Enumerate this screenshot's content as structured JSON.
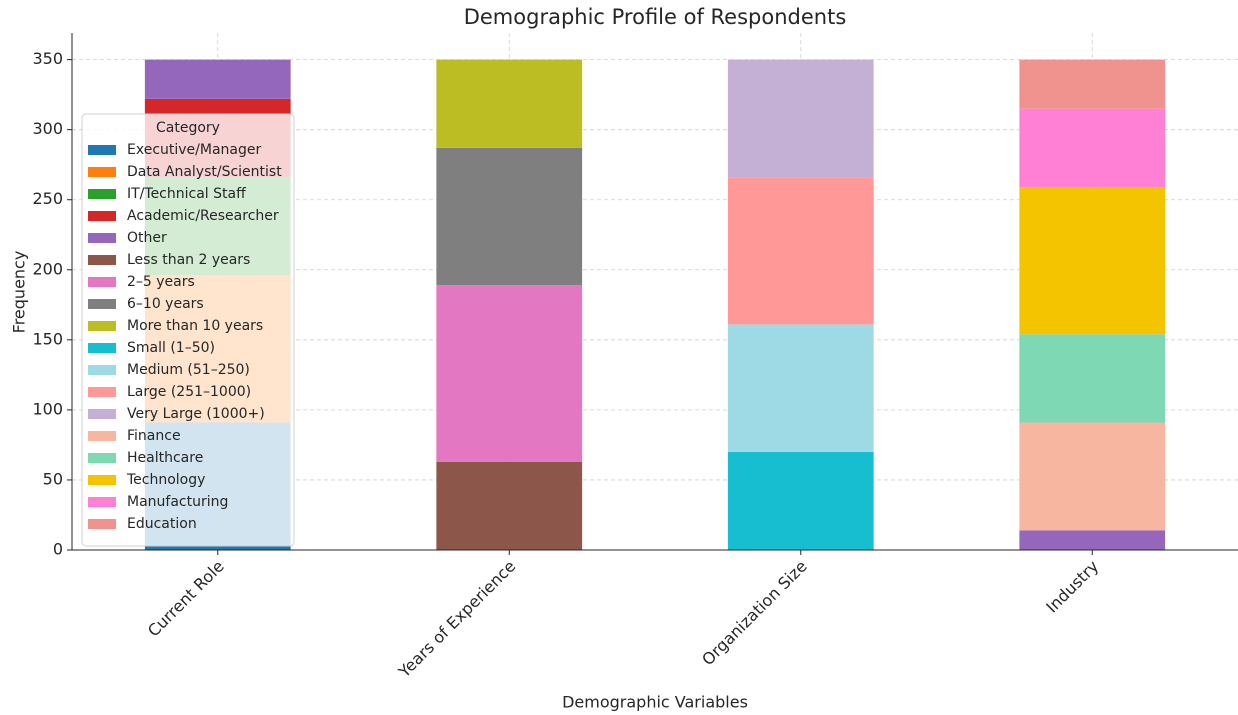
{
  "chart_data": {
    "type": "stacked_bar",
    "title": "Demographic Profile of Respondents",
    "x_label": "Demographic Variables",
    "y_label": "Frequency",
    "categories": [
      "Current Role",
      "Years of Experience",
      "Organization Size",
      "Industry"
    ],
    "ylim": [
      0,
      369
    ],
    "yticks": [
      0,
      50,
      100,
      150,
      200,
      250,
      300,
      350
    ],
    "grid": true,
    "legend_title": "Category",
    "legend_position": "left",
    "series": [
      {
        "name": "Executive/Manager",
        "color": "#1f77b4",
        "values": [
          91,
          null,
          null,
          null
        ]
      },
      {
        "name": "Data Analyst/Scientist",
        "color": "#ff7f0e",
        "values": [
          105,
          null,
          null,
          null
        ]
      },
      {
        "name": "IT/Technical Staff",
        "color": "#2ca02c",
        "values": [
          70,
          null,
          null,
          null
        ]
      },
      {
        "name": "Academic/Researcher",
        "color": "#d62728",
        "values": [
          56,
          null,
          null,
          null
        ]
      },
      {
        "name": "Other",
        "color": "#9467bd",
        "values": [
          28,
          null,
          null,
          14
        ]
      },
      {
        "name": "Less than 2 years",
        "color": "#8c564b",
        "values": [
          null,
          63,
          null,
          null
        ]
      },
      {
        "name": "2–5 years",
        "color": "#e377c2",
        "values": [
          null,
          126,
          null,
          null
        ]
      },
      {
        "name": "6–10 years",
        "color": "#7f7f7f",
        "values": [
          null,
          98,
          null,
          null
        ]
      },
      {
        "name": "More than 10 years",
        "color": "#bcbd22",
        "values": [
          null,
          63,
          null,
          null
        ]
      },
      {
        "name": "Small (1–50)",
        "color": "#17becf",
        "values": [
          null,
          null,
          70,
          null
        ]
      },
      {
        "name": "Medium (51–250)",
        "color": "#9edae5",
        "values": [
          null,
          null,
          91,
          null
        ]
      },
      {
        "name": "Large (251–1000)",
        "color": "#ff9896",
        "values": [
          null,
          null,
          105,
          null
        ]
      },
      {
        "name": "Very Large (1000+)",
        "color": "#c5b0d5",
        "values": [
          null,
          null,
          84,
          null
        ]
      },
      {
        "name": "Finance",
        "color": "#f7b6a0",
        "values": [
          null,
          null,
          null,
          77
        ]
      },
      {
        "name": "Healthcare",
        "color": "#7fd8b4",
        "values": [
          null,
          null,
          null,
          63
        ]
      },
      {
        "name": "Technology",
        "color": "#f5c400",
        "values": [
          null,
          null,
          null,
          105
        ]
      },
      {
        "name": "Manufacturing",
        "color": "#ff80d5",
        "values": [
          null,
          null,
          null,
          56
        ]
      },
      {
        "name": "Education",
        "color": "#f0938f",
        "values": [
          null,
          null,
          null,
          35
        ]
      }
    ]
  }
}
